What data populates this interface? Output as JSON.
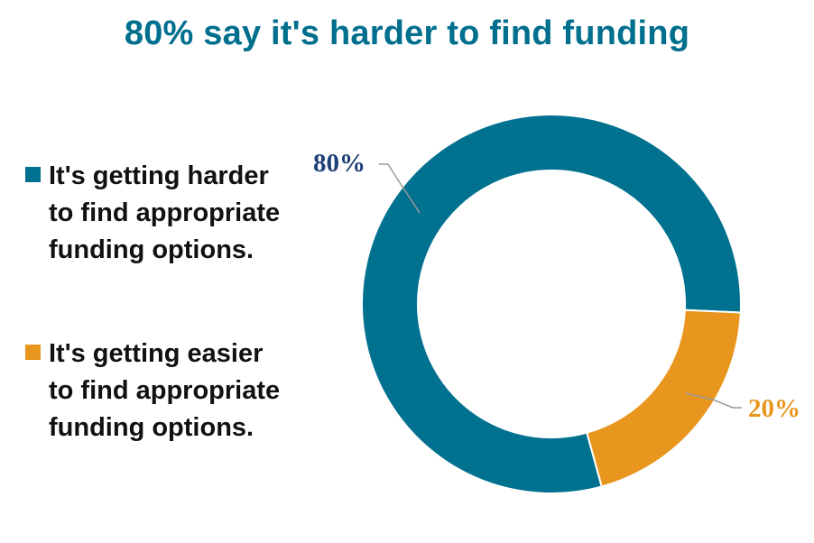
{
  "title": "80% say it's harder to find funding",
  "colors": {
    "title": "#006f8e",
    "harder": "#00718f",
    "easier": "#e8961e",
    "leader": "#9a9a9a",
    "label_dark": "#1f3f76"
  },
  "chart_data": {
    "type": "pie",
    "variant": "donut",
    "title": "80% say it's harder to find funding",
    "legend_position": "left",
    "slices": [
      {
        "name": "It's getting harder to find appropriate funding options.",
        "value": 80,
        "label": "80%",
        "color": "#00718f",
        "label_color": "#1f3f76"
      },
      {
        "name": "It's getting easier to find appropriate funding options.",
        "value": 20,
        "label": "20%",
        "color": "#e8961e",
        "label_color": "#e8961e"
      }
    ]
  }
}
